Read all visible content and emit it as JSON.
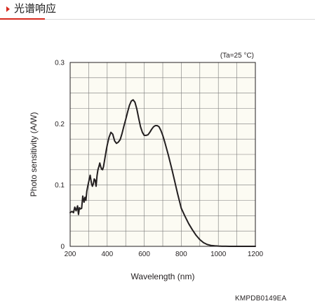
{
  "header": {
    "title": "光谱响应",
    "accent_color": "#d7281c"
  },
  "figure_code": "KMPDB0149EA",
  "chart_data": {
    "type": "line",
    "title": "",
    "annotation": "(Ta=25 °C)",
    "xlabel": "Wavelength (nm)",
    "ylabel": "Photo sensitivity (A/W)",
    "xlim": [
      200,
      1200
    ],
    "ylim": [
      0,
      0.3
    ],
    "xticks": [
      200,
      400,
      600,
      800,
      1000,
      1200
    ],
    "yticks": [
      0,
      0.1,
      0.2,
      0.3
    ],
    "ytick_labels": [
      "0",
      "0.1",
      "0.2",
      "0.3"
    ],
    "grid": true,
    "series": [
      {
        "name": "",
        "color": "#231f20",
        "x": [
          200,
          210,
          218,
          225,
          232,
          240,
          245,
          250,
          255,
          262,
          268,
          275,
          280,
          285,
          290,
          295,
          300,
          308,
          315,
          320,
          325,
          330,
          335,
          340,
          345,
          350,
          355,
          360,
          365,
          370,
          375,
          380,
          385,
          390,
          395,
          400,
          410,
          420,
          430,
          440,
          450,
          460,
          470,
          480,
          490,
          500,
          510,
          520,
          530,
          540,
          550,
          560,
          570,
          580,
          590,
          600,
          610,
          620,
          630,
          640,
          650,
          660,
          670,
          680,
          690,
          700,
          710,
          720,
          730,
          740,
          750,
          760,
          770,
          780,
          790,
          800,
          820,
          840,
          860,
          880,
          900,
          920,
          940,
          960,
          980,
          1000,
          1020,
          1040,
          1060,
          1080,
          1100,
          1120,
          1140,
          1160,
          1180,
          1200
        ],
        "y": [
          0.055,
          0.057,
          0.055,
          0.064,
          0.058,
          0.066,
          0.052,
          0.063,
          0.061,
          0.062,
          0.082,
          0.072,
          0.08,
          0.075,
          0.09,
          0.098,
          0.105,
          0.116,
          0.103,
          0.098,
          0.102,
          0.11,
          0.108,
          0.098,
          0.115,
          0.125,
          0.13,
          0.136,
          0.13,
          0.126,
          0.125,
          0.13,
          0.139,
          0.148,
          0.157,
          0.165,
          0.178,
          0.186,
          0.183,
          0.172,
          0.168,
          0.17,
          0.174,
          0.184,
          0.196,
          0.207,
          0.219,
          0.23,
          0.237,
          0.239,
          0.235,
          0.224,
          0.209,
          0.195,
          0.186,
          0.181,
          0.181,
          0.182,
          0.186,
          0.191,
          0.195,
          0.197,
          0.197,
          0.195,
          0.189,
          0.181,
          0.171,
          0.16,
          0.149,
          0.137,
          0.125,
          0.112,
          0.099,
          0.086,
          0.074,
          0.062,
          0.049,
          0.037,
          0.027,
          0.018,
          0.011,
          0.006,
          0.003,
          0.0015,
          0.0008,
          0.0004,
          0.0002,
          0.0001,
          0,
          0,
          0,
          0,
          0,
          0,
          0,
          0
        ]
      }
    ]
  }
}
